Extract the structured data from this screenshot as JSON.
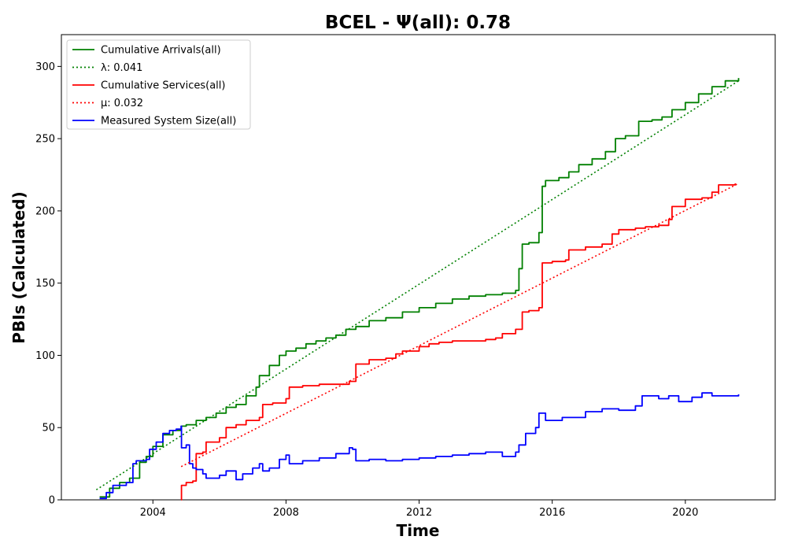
{
  "chart_data": {
    "type": "line",
    "title": "BCEL -  Ψ(all): 0.78",
    "xlabel": "Time",
    "ylabel": "PBIs (Calculated)",
    "xlim": [
      2001.25,
      2022.7
    ],
    "ylim": [
      0,
      322
    ],
    "x_ticks": [
      2004,
      2008,
      2012,
      2016,
      2020
    ],
    "y_ticks": [
      0,
      50,
      100,
      150,
      200,
      250,
      300
    ],
    "grid": false,
    "legend_position": "top-left",
    "series": [
      {
        "name": "Cumulative Arrivals(all)",
        "color": "#008000",
        "style": "solid",
        "x": [
          2002.4,
          2002.7,
          2003.0,
          2003.3,
          2003.6,
          2003.8,
          2004.0,
          2004.3,
          2004.6,
          2004.85,
          2005.0,
          2005.3,
          2005.6,
          2005.9,
          2006.2,
          2006.5,
          2006.8,
          2007.1,
          2007.2,
          2007.5,
          2007.8,
          2008.0,
          2008.3,
          2008.6,
          2008.9,
          2009.2,
          2009.5,
          2009.8,
          2010.1,
          2010.5,
          2011.0,
          2011.5,
          2012.0,
          2012.5,
          2013.0,
          2013.5,
          2014.0,
          2014.5,
          2014.9,
          2015.0,
          2015.1,
          2015.3,
          2015.6,
          2015.7,
          2015.8,
          2016.2,
          2016.5,
          2016.8,
          2017.2,
          2017.6,
          2017.9,
          2018.2,
          2018.6,
          2019.0,
          2019.3,
          2019.6,
          2020.0,
          2020.4,
          2020.8,
          2021.2,
          2021.6
        ],
        "y": [
          2,
          8,
          12,
          15,
          26,
          30,
          37,
          45,
          48,
          51,
          52,
          55,
          57,
          60,
          64,
          66,
          72,
          78,
          86,
          93,
          100,
          103,
          105,
          108,
          110,
          112,
          114,
          118,
          120,
          124,
          126,
          130,
          133,
          136,
          139,
          141,
          142,
          143,
          145,
          160,
          177,
          178,
          185,
          217,
          221,
          223,
          227,
          232,
          236,
          241,
          250,
          252,
          262,
          263,
          265,
          270,
          275,
          281,
          286,
          290,
          292
        ]
      },
      {
        "name": "λ: 0.041",
        "color": "#008000",
        "style": "dotted",
        "x": [
          2002.3,
          2021.6
        ],
        "y": [
          7,
          290
        ]
      },
      {
        "name": "Cumulative Services(all)",
        "color": "#ff0000",
        "style": "solid",
        "x": [
          2004.85,
          2004.86,
          2005.0,
          2005.2,
          2005.3,
          2005.5,
          2005.6,
          2006.0,
          2006.2,
          2006.5,
          2006.8,
          2007.2,
          2007.3,
          2007.6,
          2008.0,
          2008.1,
          2008.5,
          2009.0,
          2009.5,
          2009.9,
          2010.1,
          2010.5,
          2011.0,
          2011.3,
          2011.5,
          2012.0,
          2012.3,
          2012.6,
          2013.0,
          2013.5,
          2014.0,
          2014.3,
          2014.5,
          2014.9,
          2015.1,
          2015.3,
          2015.6,
          2015.7,
          2016.0,
          2016.4,
          2016.5,
          2017.0,
          2017.5,
          2017.8,
          2018.0,
          2018.5,
          2018.8,
          2019.2,
          2019.5,
          2019.6,
          2020.0,
          2020.5,
          2020.8,
          2021.0,
          2021.5
        ],
        "y": [
          0,
          10,
          12,
          13,
          32,
          33,
          40,
          43,
          50,
          52,
          55,
          57,
          66,
          67,
          70,
          78,
          79,
          80,
          80,
          82,
          94,
          97,
          98,
          101,
          103,
          106,
          108,
          109,
          110,
          110,
          111,
          112,
          115,
          118,
          130,
          131,
          133,
          164,
          165,
          166,
          173,
          175,
          177,
          184,
          187,
          188,
          189,
          190,
          194,
          203,
          208,
          209,
          213,
          218,
          219
        ]
      },
      {
        "name": "μ: 0.032",
        "color": "#ff0000",
        "style": "dotted",
        "x": [
          2004.85,
          2021.6
        ],
        "y": [
          23,
          219
        ]
      },
      {
        "name": "Measured System Size(all)",
        "color": "#0000ff",
        "style": "solid",
        "x": [
          2002.4,
          2002.6,
          2002.8,
          2003.2,
          2003.4,
          2003.5,
          2003.8,
          2003.9,
          2004.1,
          2004.3,
          2004.5,
          2004.7,
          2004.85,
          2004.86,
          2005.0,
          2005.1,
          2005.2,
          2005.3,
          2005.5,
          2005.6,
          2006.0,
          2006.2,
          2006.5,
          2006.7,
          2007.0,
          2007.2,
          2007.3,
          2007.5,
          2007.8,
          2008.0,
          2008.1,
          2008.5,
          2009.0,
          2009.5,
          2009.9,
          2010.0,
          2010.1,
          2010.5,
          2011.0,
          2011.5,
          2012.0,
          2012.5,
          2013.0,
          2013.5,
          2014.0,
          2014.5,
          2014.9,
          2015.0,
          2015.2,
          2015.5,
          2015.6,
          2015.8,
          2016.3,
          2016.6,
          2017.0,
          2017.5,
          2018.0,
          2018.5,
          2018.7,
          2019.2,
          2019.5,
          2019.8,
          2020.2,
          2020.5,
          2020.8,
          2021.2,
          2021.6
        ],
        "y": [
          1,
          5,
          10,
          12,
          25,
          27,
          28,
          35,
          40,
          46,
          48,
          49,
          51,
          36,
          38,
          25,
          22,
          21,
          18,
          15,
          17,
          20,
          14,
          18,
          22,
          25,
          20,
          22,
          28,
          31,
          25,
          27,
          29,
          32,
          36,
          35,
          27,
          28,
          27,
          28,
          29,
          30,
          31,
          32,
          33,
          30,
          33,
          38,
          46,
          50,
          60,
          55,
          57,
          57,
          61,
          63,
          62,
          65,
          72,
          70,
          72,
          68,
          71,
          74,
          72,
          72,
          73
        ]
      }
    ]
  }
}
